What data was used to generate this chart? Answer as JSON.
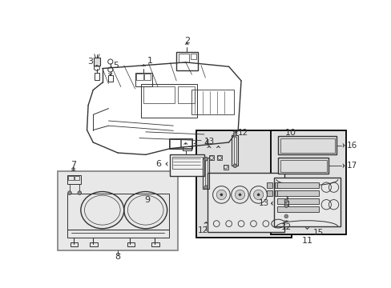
{
  "bg_color": "#ffffff",
  "fig_width": 4.89,
  "fig_height": 3.6,
  "dpi": 100,
  "line_color": "#333333",
  "box8_fill": "#e8e8e8",
  "box10_fill": "#e0e0e0",
  "box11_fill": "#e0e0e0"
}
